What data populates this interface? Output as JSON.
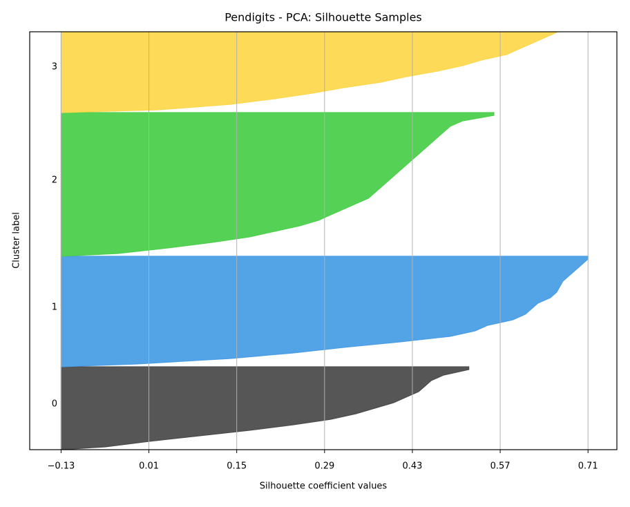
{
  "chart_data": {
    "type": "silhouette",
    "title": "Pendigits - PCA: Silhouette Samples",
    "xlabel": "Silhouette coefficient values",
    "ylabel": "Cluster label",
    "xlim": [
      -0.18,
      0.756
    ],
    "xticks": [
      {
        "value": -0.13,
        "label": "−0.13"
      },
      0.01,
      0.15,
      0.29,
      0.43,
      0.57,
      0.71
    ],
    "grid": true,
    "series": [
      {
        "name": "0",
        "color": "#4d4d4d",
        "values": [
          -0.06,
          0.01,
          0.09,
          0.17,
          0.24,
          0.3,
          0.34,
          0.37,
          0.4,
          0.42,
          0.44,
          0.45,
          0.46,
          0.48,
          0.52
        ]
      },
      {
        "name": "1",
        "color": "#4a9ee6",
        "values": [
          -0.01,
          0.14,
          0.24,
          0.32,
          0.41,
          0.49,
          0.53,
          0.55,
          0.59,
          0.61,
          0.62,
          0.63,
          0.65,
          0.66,
          0.665,
          0.67,
          0.68,
          0.69,
          0.7,
          0.71
        ]
      },
      {
        "name": "2",
        "color": "#4cd04c",
        "values": [
          -0.04,
          0.04,
          0.11,
          0.17,
          0.21,
          0.25,
          0.28,
          0.3,
          0.32,
          0.34,
          0.36,
          0.37,
          0.38,
          0.39,
          0.4,
          0.41,
          0.42,
          0.43,
          0.44,
          0.45,
          0.46,
          0.47,
          0.48,
          0.49,
          0.51,
          0.56
        ]
      },
      {
        "name": "3",
        "color": "#fdd84e",
        "values": [
          0.025,
          0.14,
          0.21,
          0.27,
          0.32,
          0.38,
          0.42,
          0.47,
          0.51,
          0.54,
          0.58,
          0.6,
          0.62,
          0.64,
          0.66
        ]
      }
    ]
  }
}
